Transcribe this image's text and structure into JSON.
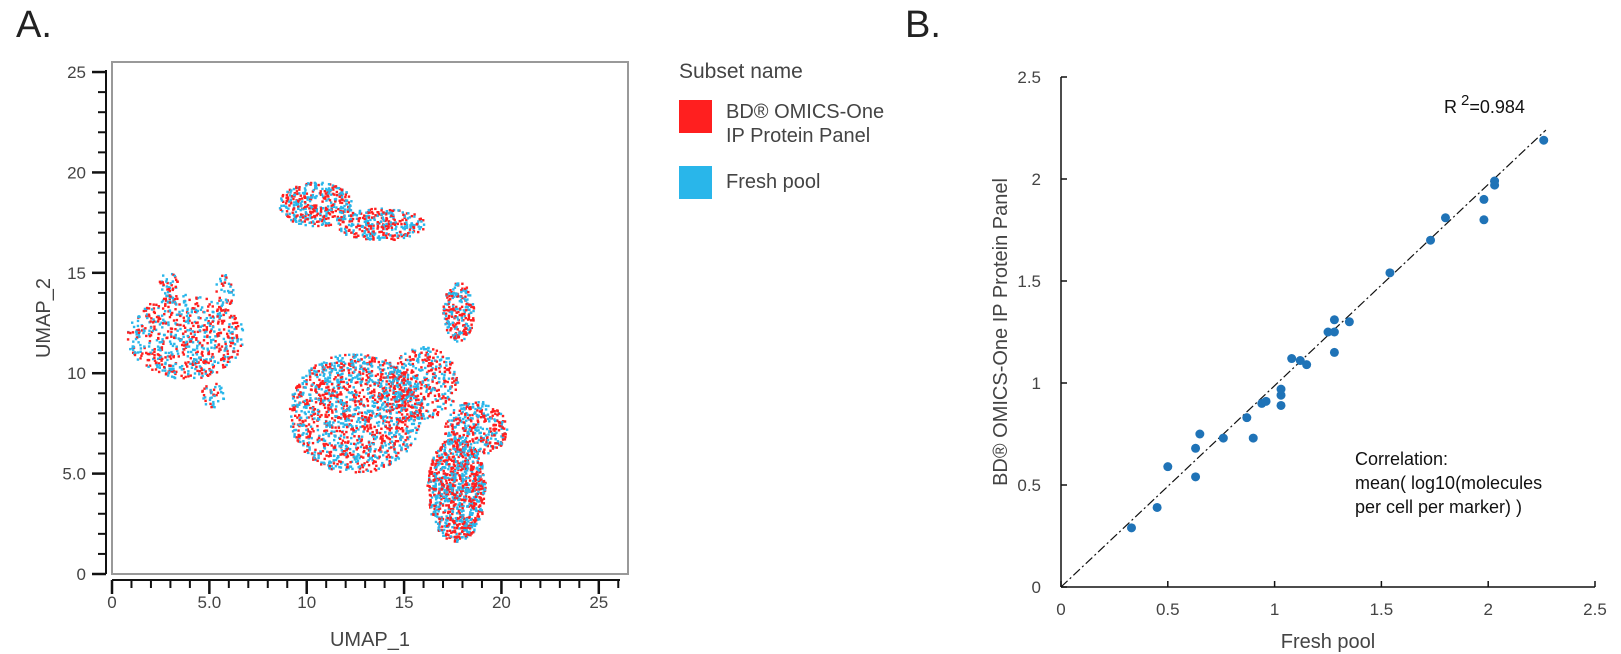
{
  "panels": {
    "a_label": "A.",
    "b_label": "B."
  },
  "colors": {
    "red": "#ff1f1f",
    "blue": "#29b6ea",
    "dot": "#1f73b7"
  },
  "legend": {
    "title": "Subset name",
    "items": [
      {
        "line1": "BD® OMICS-One",
        "line2": "IP Protein Panel",
        "color": "#ff1f1f"
      },
      {
        "line1": "Fresh pool",
        "line2": "",
        "color": "#29b6ea"
      }
    ]
  },
  "chart_data": [
    {
      "type": "scatter",
      "xlabel": "UMAP_1",
      "ylabel": "UMAP_2",
      "xlim": [
        0,
        26.5
      ],
      "ylim": [
        0,
        25.5
      ],
      "x_ticks": [
        {
          "v": 0,
          "label": "0"
        },
        {
          "v": 5,
          "label": "5.0"
        },
        {
          "v": 10,
          "label": "10"
        },
        {
          "v": 15,
          "label": "15"
        },
        {
          "v": 20,
          "label": "20"
        },
        {
          "v": 25,
          "label": "25"
        }
      ],
      "y_ticks": [
        {
          "v": 0,
          "label": "0"
        },
        {
          "v": 5,
          "label": "5.0"
        },
        {
          "v": 10,
          "label": "10"
        },
        {
          "v": 15,
          "label": "15"
        },
        {
          "v": 20,
          "label": "20"
        },
        {
          "v": 25,
          "label": "25"
        }
      ],
      "series": [
        {
          "name": "BD® OMICS-One IP Protein Panel",
          "color": "#ff1f1f"
        },
        {
          "name": "Fresh pool",
          "color": "#29b6ea"
        }
      ],
      "clusters": [
        {
          "cx": 3.8,
          "cy": 11.8,
          "rx": 3.0,
          "ry": 2.1,
          "n": 700
        },
        {
          "cx": 5.2,
          "cy": 8.9,
          "rx": 0.6,
          "ry": 0.6,
          "n": 40
        },
        {
          "cx": 2.9,
          "cy": 14.4,
          "rx": 0.5,
          "ry": 0.6,
          "n": 40
        },
        {
          "cx": 5.8,
          "cy": 14.1,
          "rx": 0.5,
          "ry": 0.8,
          "n": 40
        },
        {
          "cx": 10.5,
          "cy": 18.4,
          "rx": 1.9,
          "ry": 1.1,
          "n": 380
        },
        {
          "cx": 13.8,
          "cy": 17.4,
          "rx": 2.3,
          "ry": 0.8,
          "n": 330
        },
        {
          "cx": 12.5,
          "cy": 8.0,
          "rx": 3.4,
          "ry": 3.0,
          "n": 1500
        },
        {
          "cx": 16.0,
          "cy": 9.5,
          "rx": 1.8,
          "ry": 1.8,
          "n": 400
        },
        {
          "cx": 18.7,
          "cy": 7.2,
          "rx": 1.6,
          "ry": 1.4,
          "n": 350
        },
        {
          "cx": 17.8,
          "cy": 13.0,
          "rx": 0.8,
          "ry": 1.5,
          "n": 230
        },
        {
          "cx": 17.7,
          "cy": 4.2,
          "rx": 1.5,
          "ry": 2.6,
          "n": 1000
        }
      ]
    },
    {
      "type": "scatter",
      "xlabel": "Fresh pool",
      "ylabel": "BD® OMICS-One IP Protein Panel",
      "xlim": [
        0,
        2.5
      ],
      "ylim": [
        0,
        2.5
      ],
      "x_ticks": [
        {
          "v": 0,
          "label": "0"
        },
        {
          "v": 0.5,
          "label": "0.5"
        },
        {
          "v": 1,
          "label": "1"
        },
        {
          "v": 1.5,
          "label": "1.5"
        },
        {
          "v": 2,
          "label": "2"
        },
        {
          "v": 2.5,
          "label": "2.5"
        }
      ],
      "y_ticks": [
        {
          "v": 0,
          "label": "0"
        },
        {
          "v": 0.5,
          "label": "0.5"
        },
        {
          "v": 1,
          "label": "1"
        },
        {
          "v": 1.5,
          "label": "1.5"
        },
        {
          "v": 2,
          "label": "2"
        },
        {
          "v": 2.5,
          "label": "2.5"
        }
      ],
      "r2_base": "R",
      "r2_exp": "2",
      "r2_value": "=0.984",
      "annotation": [
        "Correlation:",
        "mean( log10(molecules",
        "per cell per marker) )"
      ],
      "trendline": {
        "x": [
          0,
          2.27
        ],
        "y": [
          0,
          2.24
        ]
      },
      "points": [
        {
          "x": 0.33,
          "y": 0.29
        },
        {
          "x": 0.45,
          "y": 0.39
        },
        {
          "x": 0.5,
          "y": 0.59
        },
        {
          "x": 0.63,
          "y": 0.54
        },
        {
          "x": 0.63,
          "y": 0.68
        },
        {
          "x": 0.65,
          "y": 0.75
        },
        {
          "x": 0.76,
          "y": 0.73
        },
        {
          "x": 0.87,
          "y": 0.83
        },
        {
          "x": 0.9,
          "y": 0.73
        },
        {
          "x": 0.94,
          "y": 0.9
        },
        {
          "x": 0.96,
          "y": 0.91
        },
        {
          "x": 1.03,
          "y": 0.89
        },
        {
          "x": 1.03,
          "y": 0.94
        },
        {
          "x": 1.03,
          "y": 0.97
        },
        {
          "x": 1.08,
          "y": 1.12
        },
        {
          "x": 1.12,
          "y": 1.11
        },
        {
          "x": 1.15,
          "y": 1.09
        },
        {
          "x": 1.25,
          "y": 1.25
        },
        {
          "x": 1.28,
          "y": 1.25
        },
        {
          "x": 1.28,
          "y": 1.31
        },
        {
          "x": 1.28,
          "y": 1.15
        },
        {
          "x": 1.35,
          "y": 1.3
        },
        {
          "x": 1.54,
          "y": 1.54
        },
        {
          "x": 1.73,
          "y": 1.7
        },
        {
          "x": 1.8,
          "y": 1.81
        },
        {
          "x": 1.98,
          "y": 1.8
        },
        {
          "x": 1.98,
          "y": 1.9
        },
        {
          "x": 2.03,
          "y": 1.97
        },
        {
          "x": 2.03,
          "y": 1.99
        },
        {
          "x": 2.26,
          "y": 2.19
        }
      ]
    }
  ]
}
